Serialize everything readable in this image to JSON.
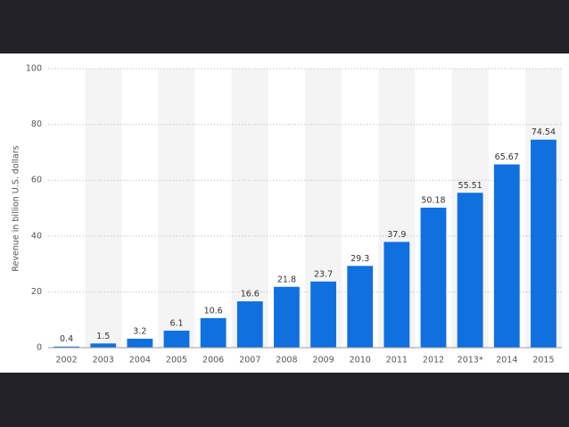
{
  "chart_data": {
    "type": "bar",
    "y_label": "Revenue in billion U.S. dollars",
    "categories": [
      "2002",
      "2003",
      "2004",
      "2005",
      "2006",
      "2007",
      "2008",
      "2009",
      "2010",
      "2011",
      "2012",
      "2013*",
      "2014",
      "2015"
    ],
    "values": [
      0.4,
      1.5,
      3.2,
      6.1,
      10.6,
      16.6,
      21.8,
      23.7,
      29.3,
      37.9,
      50.18,
      55.51,
      65.67,
      74.54
    ],
    "color": "#1170e0",
    "ylim": [
      0,
      100
    ],
    "yticks": [
      0,
      20,
      40,
      60,
      80,
      100
    ],
    "grid": true
  }
}
